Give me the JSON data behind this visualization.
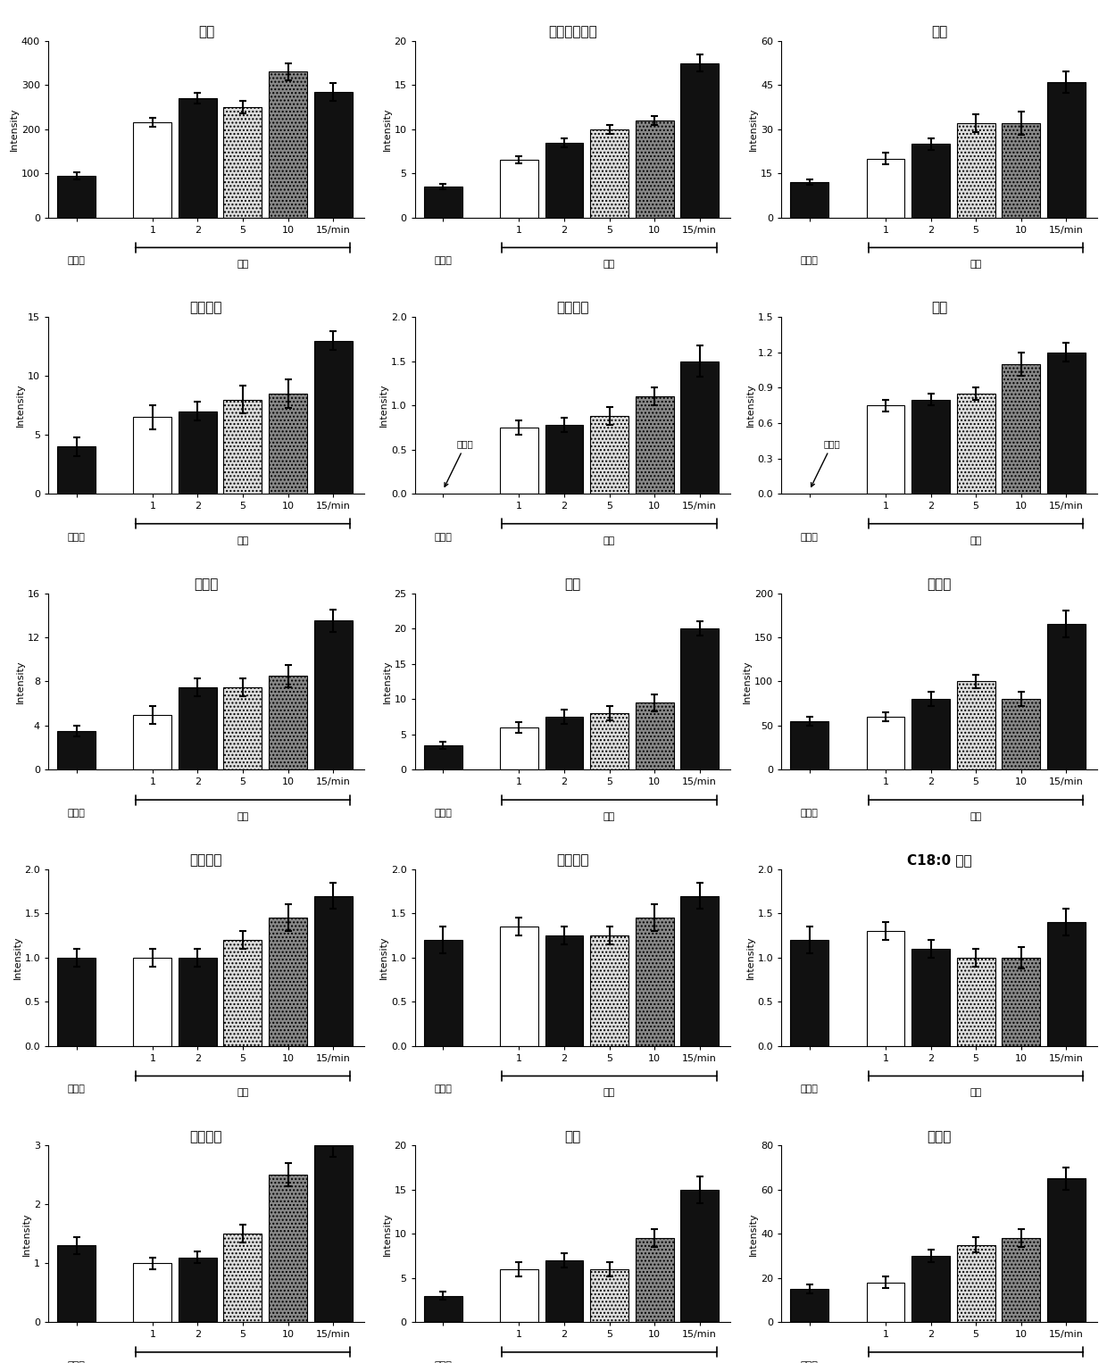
{
  "charts": [
    {
      "title": "胆碱",
      "ylim": [
        0,
        400
      ],
      "yticks": [
        0,
        100,
        200,
        300,
        400
      ],
      "values": [
        95,
        215,
        270,
        250,
        330,
        285
      ],
      "errors": [
        8,
        10,
        12,
        15,
        20,
        20
      ],
      "not_detected": false
    },
    {
      "title": "甘油磷酸胆碱",
      "ylim": [
        0,
        20
      ],
      "yticks": [
        0,
        5,
        10,
        15,
        20
      ],
      "values": [
        3.5,
        6.5,
        8.5,
        10.0,
        11.0,
        17.5
      ],
      "errors": [
        0.3,
        0.4,
        0.5,
        0.5,
        0.5,
        1.0
      ],
      "not_detected": false
    },
    {
      "title": "肉碱",
      "ylim": [
        0,
        60
      ],
      "yticks": [
        0,
        15,
        30,
        45,
        60
      ],
      "values": [
        12.0,
        20.0,
        25.0,
        32.0,
        32.0,
        46.0
      ],
      "errors": [
        1.0,
        2.0,
        2.0,
        3.0,
        4.0,
        3.5
      ],
      "not_detected": false
    },
    {
      "title": "乙酰肉碱",
      "ylim": [
        0,
        15
      ],
      "yticks": [
        0,
        5,
        10,
        15
      ],
      "values": [
        4.0,
        6.5,
        7.0,
        8.0,
        8.5,
        13.0
      ],
      "errors": [
        0.8,
        1.0,
        0.8,
        1.2,
        1.2,
        0.8
      ],
      "not_detected": false
    },
    {
      "title": "丙酰肉碱",
      "ylim": [
        0,
        2.0
      ],
      "yticks": [
        0,
        0.5,
        1.0,
        1.5,
        2.0
      ],
      "values": [
        0.0,
        0.75,
        0.78,
        0.88,
        1.1,
        1.5
      ],
      "errors": [
        0.0,
        0.08,
        0.08,
        0.1,
        0.1,
        0.18
      ],
      "not_detected": true
    },
    {
      "title": "组胺",
      "ylim": [
        0,
        1.5
      ],
      "yticks": [
        0,
        0.3,
        0.6,
        0.9,
        1.2,
        1.5
      ],
      "values": [
        0.0,
        0.75,
        0.8,
        0.85,
        1.1,
        1.2
      ],
      "errors": [
        0.0,
        0.05,
        0.05,
        0.05,
        0.1,
        0.08
      ],
      "not_detected": true
    },
    {
      "title": "亚精胺",
      "ylim": [
        0,
        16
      ],
      "yticks": [
        0,
        4,
        8,
        12,
        16
      ],
      "values": [
        3.5,
        5.0,
        7.5,
        7.5,
        8.5,
        13.5
      ],
      "errors": [
        0.5,
        0.8,
        0.8,
        0.8,
        1.0,
        1.0
      ],
      "not_detected": false
    },
    {
      "title": "精胺",
      "ylim": [
        0,
        25
      ],
      "yticks": [
        0,
        5,
        10,
        15,
        20,
        25
      ],
      "values": [
        3.5,
        6.0,
        7.5,
        8.0,
        9.5,
        20.0
      ],
      "errors": [
        0.5,
        0.8,
        1.0,
        1.0,
        1.2,
        1.0
      ],
      "not_detected": false
    },
    {
      "title": "甜菜碱",
      "ylim": [
        0,
        200
      ],
      "yticks": [
        0,
        50,
        100,
        150,
        200
      ],
      "values": [
        55.0,
        60.0,
        80.0,
        100.0,
        80.0,
        165.0
      ],
      "errors": [
        5.0,
        5.0,
        8.0,
        8.0,
        8.0,
        15.0
      ],
      "not_detected": false
    },
    {
      "title": "丁酰肉碱",
      "ylim": [
        0,
        2.0
      ],
      "yticks": [
        0,
        0.5,
        1.0,
        1.5,
        2.0
      ],
      "values": [
        1.0,
        1.0,
        1.0,
        1.2,
        1.45,
        1.7
      ],
      "errors": [
        0.1,
        0.1,
        0.1,
        0.1,
        0.15,
        0.15
      ],
      "not_detected": false
    },
    {
      "title": "戊酰肉碱",
      "ylim": [
        0,
        2.0
      ],
      "yticks": [
        0,
        0.5,
        1.0,
        1.5,
        2.0
      ],
      "values": [
        1.2,
        1.35,
        1.25,
        1.25,
        1.45,
        1.7
      ],
      "errors": [
        0.15,
        0.1,
        0.1,
        0.1,
        0.15,
        0.15
      ],
      "not_detected": false
    },
    {
      "title": "C18:0 肉碱",
      "ylim": [
        0,
        2.0
      ],
      "yticks": [
        0,
        0.5,
        1.0,
        1.5,
        2.0
      ],
      "values": [
        1.2,
        1.3,
        1.1,
        1.0,
        1.0,
        1.4
      ],
      "errors": [
        0.15,
        0.1,
        0.1,
        0.1,
        0.12,
        0.15
      ],
      "not_detected": false
    },
    {
      "title": "乙酰胆碱",
      "ylim": [
        0,
        3.0
      ],
      "yticks": [
        0,
        1.0,
        2.0,
        3.0
      ],
      "values": [
        1.3,
        1.0,
        1.1,
        1.5,
        2.5,
        3.0
      ],
      "errors": [
        0.15,
        0.1,
        0.1,
        0.15,
        0.2,
        0.2
      ],
      "not_detected": false
    },
    {
      "title": "肌酸",
      "ylim": [
        0,
        20
      ],
      "yticks": [
        0,
        5,
        10,
        15,
        20
      ],
      "values": [
        3.0,
        6.0,
        7.0,
        6.0,
        9.5,
        15.0
      ],
      "errors": [
        0.5,
        0.8,
        0.8,
        0.8,
        1.0,
        1.5
      ],
      "not_detected": false
    },
    {
      "title": "组氨酸",
      "ylim": [
        0,
        80
      ],
      "yticks": [
        0,
        20,
        40,
        60,
        80
      ],
      "values": [
        15.0,
        18.0,
        30.0,
        35.0,
        38.0,
        65.0
      ],
      "errors": [
        2.0,
        2.5,
        3.0,
        3.5,
        4.0,
        5.0
      ],
      "not_detected": false
    }
  ],
  "xlabel_left": "无处理",
  "xlabel_right": "丙酮",
  "xtick_labels": [
    "",
    "1",
    "2",
    "5",
    "10",
    "15/min"
  ],
  "ylabel": "Intensity",
  "not_detected_text": "未测到"
}
